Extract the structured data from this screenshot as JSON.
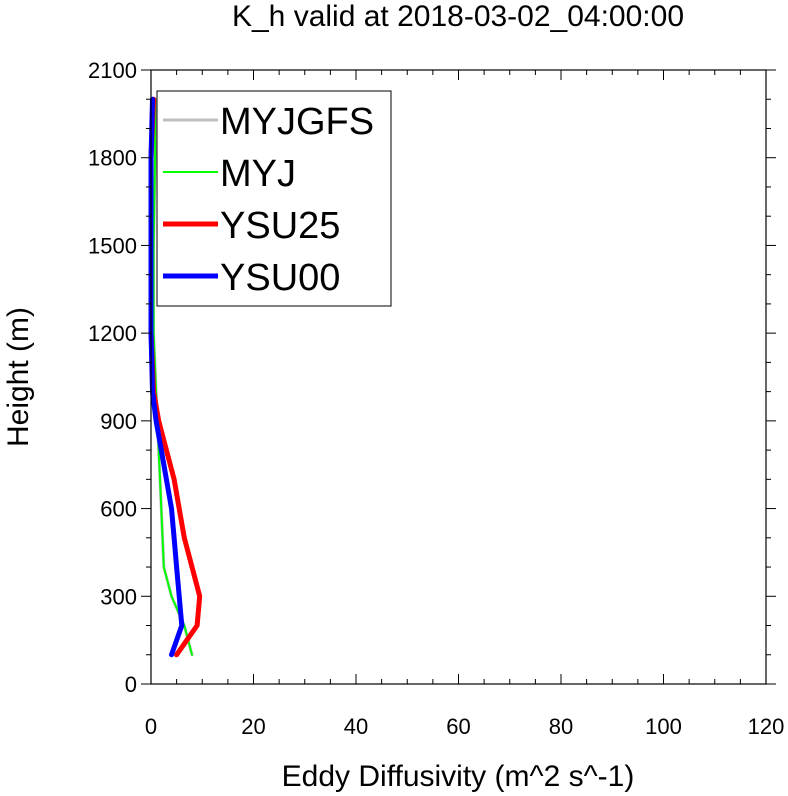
{
  "chart_data": {
    "type": "line",
    "title": "K_h valid at 2018-03-02_04:00:00",
    "xlabel": "Eddy Diffusivity (m^2 s^-1)",
    "ylabel": "Height (m)",
    "xlim": [
      0,
      120
    ],
    "ylim": [
      0,
      2100
    ],
    "xticks": [
      "0",
      "20",
      "40",
      "60",
      "80",
      "100",
      "120"
    ],
    "yticks": [
      "0",
      "300",
      "600",
      "900",
      "1200",
      "1500",
      "1800",
      "2100"
    ],
    "grid": false,
    "legend_position": "top-left",
    "series": [
      {
        "name": "MYJGFS",
        "color": "#bebebe",
        "points": [
          [
            8,
            100
          ],
          [
            6.5,
            200
          ],
          [
            4,
            300
          ],
          [
            2.5,
            400
          ],
          [
            2,
            600
          ],
          [
            1.5,
            800
          ],
          [
            1,
            1000
          ],
          [
            0.5,
            1200
          ],
          [
            0.5,
            1500
          ],
          [
            0.8,
            1800
          ],
          [
            0.8,
            2000
          ]
        ]
      },
      {
        "name": "MYJ",
        "color": "#00ff00",
        "points": [
          [
            8,
            100
          ],
          [
            6.5,
            200
          ],
          [
            4,
            300
          ],
          [
            2.5,
            400
          ],
          [
            2,
            600
          ],
          [
            1.5,
            800
          ],
          [
            1,
            1000
          ],
          [
            0.5,
            1200
          ],
          [
            0.5,
            1500
          ],
          [
            0.8,
            1800
          ],
          [
            0.8,
            2000
          ]
        ]
      },
      {
        "name": "YSU25",
        "color": "#ff0000",
        "points": [
          [
            5,
            100
          ],
          [
            9,
            200
          ],
          [
            9.5,
            300
          ],
          [
            8,
            400
          ],
          [
            6.5,
            500
          ],
          [
            5.5,
            600
          ],
          [
            4.5,
            700
          ],
          [
            3,
            800
          ],
          [
            1.5,
            900
          ],
          [
            0.5,
            1000
          ],
          [
            0,
            1200
          ],
          [
            0,
            1500
          ],
          [
            0,
            1800
          ],
          [
            0.5,
            2000
          ]
        ]
      },
      {
        "name": "YSU00",
        "color": "#0000ff",
        "points": [
          [
            4,
            100
          ],
          [
            6,
            200
          ],
          [
            5.5,
            300
          ],
          [
            5,
            400
          ],
          [
            4.5,
            500
          ],
          [
            4,
            600
          ],
          [
            3,
            700
          ],
          [
            2,
            800
          ],
          [
            1,
            900
          ],
          [
            0.3,
            1000
          ],
          [
            0,
            1200
          ],
          [
            0,
            1500
          ],
          [
            0,
            1800
          ],
          [
            0.3,
            2000
          ]
        ]
      }
    ]
  }
}
